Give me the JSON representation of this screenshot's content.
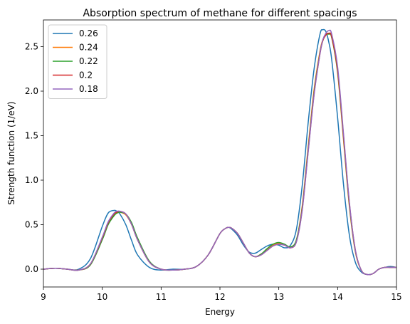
{
  "chart_data": {
    "type": "line",
    "title": "Absorption spectrum of methane for different spacings",
    "xlabel": "Energy",
    "ylabel": "Strength function (1/eV)",
    "xlim": [
      9,
      15
    ],
    "ylim": [
      -0.2,
      2.8
    ],
    "xticks": [
      9,
      10,
      11,
      12,
      13,
      14,
      15
    ],
    "xtick_labels": [
      "9",
      "10",
      "11",
      "12",
      "13",
      "14",
      "15"
    ],
    "yticks": [
      0.0,
      0.5,
      1.0,
      1.5,
      2.0,
      2.5
    ],
    "ytick_labels": [
      "0.0",
      "0.5",
      "1.0",
      "1.5",
      "2.0",
      "2.5"
    ],
    "grid": false,
    "legend_position": "top-left",
    "x": [
      9.0,
      9.2,
      9.4,
      9.6,
      9.8,
      10.0,
      10.1,
      10.2,
      10.25,
      10.3,
      10.4,
      10.5,
      10.6,
      10.8,
      11.0,
      11.2,
      11.4,
      11.6,
      11.8,
      12.0,
      12.1,
      12.15,
      12.2,
      12.3,
      12.4,
      12.5,
      12.6,
      12.7,
      12.8,
      12.9,
      13.0,
      13.1,
      13.2,
      13.3,
      13.4,
      13.5,
      13.6,
      13.7,
      13.75,
      13.8,
      13.85,
      13.9,
      14.0,
      14.1,
      14.2,
      14.3,
      14.4,
      14.5,
      14.6,
      14.7,
      14.8,
      14.9,
      15.0
    ],
    "series": [
      {
        "name": "0.26",
        "color": "#1f77b4",
        "values": [
          0.0,
          0.01,
          0.0,
          0.0,
          0.12,
          0.48,
          0.63,
          0.66,
          0.65,
          0.62,
          0.5,
          0.32,
          0.16,
          0.02,
          -0.01,
          0.0,
          0.0,
          0.03,
          0.16,
          0.4,
          0.46,
          0.47,
          0.45,
          0.38,
          0.27,
          0.19,
          0.18,
          0.22,
          0.26,
          0.28,
          0.27,
          0.24,
          0.27,
          0.45,
          0.95,
          1.65,
          2.25,
          2.64,
          2.69,
          2.67,
          2.55,
          2.35,
          1.7,
          0.95,
          0.38,
          0.08,
          -0.03,
          -0.06,
          -0.05,
          0.0,
          0.02,
          0.03,
          0.02
        ]
      },
      {
        "name": "0.24",
        "color": "#ff7f0e",
        "values": [
          0.0,
          0.01,
          0.0,
          -0.01,
          0.05,
          0.34,
          0.51,
          0.61,
          0.63,
          0.64,
          0.61,
          0.5,
          0.33,
          0.08,
          0.0,
          -0.01,
          0.0,
          0.03,
          0.16,
          0.4,
          0.46,
          0.47,
          0.46,
          0.4,
          0.29,
          0.18,
          0.14,
          0.17,
          0.22,
          0.27,
          0.29,
          0.27,
          0.25,
          0.33,
          0.72,
          1.38,
          2.02,
          2.45,
          2.58,
          2.63,
          2.64,
          2.6,
          2.2,
          1.45,
          0.7,
          0.2,
          -0.01,
          -0.06,
          -0.05,
          0.0,
          0.02,
          0.02,
          0.02
        ]
      },
      {
        "name": "0.22",
        "color": "#2ca02c",
        "values": [
          0.0,
          0.01,
          0.0,
          -0.01,
          0.05,
          0.33,
          0.5,
          0.6,
          0.63,
          0.64,
          0.62,
          0.52,
          0.35,
          0.09,
          0.0,
          -0.01,
          0.0,
          0.03,
          0.16,
          0.4,
          0.46,
          0.47,
          0.46,
          0.4,
          0.29,
          0.18,
          0.14,
          0.17,
          0.23,
          0.28,
          0.3,
          0.28,
          0.25,
          0.33,
          0.7,
          1.35,
          1.99,
          2.43,
          2.57,
          2.63,
          2.64,
          2.6,
          2.22,
          1.48,
          0.72,
          0.21,
          -0.01,
          -0.06,
          -0.05,
          0.0,
          0.02,
          0.02,
          0.02
        ]
      },
      {
        "name": "0.2",
        "color": "#d62728",
        "values": [
          0.0,
          0.01,
          0.0,
          -0.01,
          0.06,
          0.35,
          0.52,
          0.62,
          0.64,
          0.65,
          0.62,
          0.5,
          0.33,
          0.08,
          0.0,
          -0.01,
          0.0,
          0.03,
          0.16,
          0.4,
          0.46,
          0.47,
          0.46,
          0.4,
          0.29,
          0.18,
          0.14,
          0.16,
          0.21,
          0.26,
          0.28,
          0.27,
          0.24,
          0.31,
          0.68,
          1.33,
          1.97,
          2.42,
          2.57,
          2.63,
          2.65,
          2.61,
          2.24,
          1.5,
          0.74,
          0.22,
          -0.01,
          -0.06,
          -0.05,
          0.0,
          0.02,
          0.02,
          0.02
        ]
      },
      {
        "name": "0.18",
        "color": "#9467bd",
        "values": [
          0.0,
          0.01,
          0.0,
          -0.01,
          0.06,
          0.36,
          0.53,
          0.63,
          0.65,
          0.65,
          0.62,
          0.5,
          0.33,
          0.08,
          0.0,
          -0.01,
          0.0,
          0.03,
          0.16,
          0.4,
          0.46,
          0.47,
          0.46,
          0.4,
          0.29,
          0.18,
          0.14,
          0.16,
          0.21,
          0.26,
          0.28,
          0.27,
          0.24,
          0.31,
          0.67,
          1.32,
          1.96,
          2.42,
          2.58,
          2.65,
          2.68,
          2.64,
          2.27,
          1.52,
          0.75,
          0.22,
          -0.01,
          -0.06,
          -0.05,
          0.0,
          0.02,
          0.02,
          0.02
        ]
      }
    ]
  }
}
